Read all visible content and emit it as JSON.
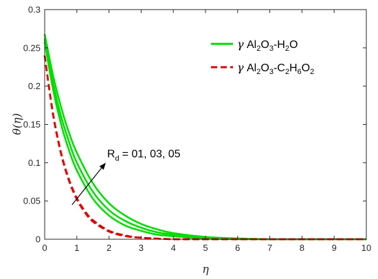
{
  "chart_data": {
    "type": "line",
    "xlabel": "η",
    "ylabel": "θ(η)",
    "xlim": [
      0,
      10
    ],
    "ylim": [
      0,
      0.3
    ],
    "x_ticks": [
      0,
      1,
      2,
      3,
      4,
      5,
      6,
      7,
      8,
      9,
      10
    ],
    "y_ticks": [
      0,
      0.05,
      0.1,
      0.15,
      0.2,
      0.25,
      0.3
    ],
    "x_tick_labels": [
      "0",
      "1",
      "2",
      "3",
      "4",
      "5",
      "6",
      "7",
      "8",
      "9",
      "10"
    ],
    "y_tick_labels": [
      "0",
      "0.05",
      "0.1",
      "0.15",
      "0.2",
      "0.25",
      "0.3"
    ],
    "grid": false,
    "legend_position": "top-right",
    "legend": [
      {
        "label": "γ Al2O3-H2O",
        "color": "#00dd00",
        "style": "solid"
      },
      {
        "label": "γ Al2O3-C2H6O2",
        "color": "#e00000",
        "style": "dashed"
      }
    ],
    "series": [
      {
        "group": "Al2O3-H2O",
        "color": "#00dd00",
        "style": "solid",
        "x": [
          0,
          0.25,
          0.5,
          0.75,
          1,
          1.5,
          2,
          2.5,
          3,
          3.5,
          4,
          5,
          6,
          7,
          8,
          9,
          10
        ],
        "y": [
          0.258,
          0.198,
          0.152,
          0.117,
          0.09,
          0.053,
          0.031,
          0.018,
          0.011,
          0.006,
          0.004,
          0.001,
          0.0,
          0.0,
          0.0,
          0.0,
          0.0
        ]
      },
      {
        "group": "Al2O3-H2O",
        "color": "#00dd00",
        "style": "solid",
        "x": [
          0,
          0.25,
          0.5,
          0.75,
          1,
          1.5,
          2,
          2.5,
          3,
          3.5,
          4,
          5,
          6,
          7,
          8,
          9,
          10
        ],
        "y": [
          0.262,
          0.206,
          0.162,
          0.128,
          0.1,
          0.062,
          0.038,
          0.024,
          0.015,
          0.009,
          0.006,
          0.002,
          0.001,
          0.0,
          0.0,
          0.0,
          0.0
        ]
      },
      {
        "group": "Al2O3-H2O",
        "color": "#00dd00",
        "style": "solid",
        "x": [
          0,
          0.25,
          0.5,
          0.75,
          1,
          1.5,
          2,
          2.5,
          3,
          3.5,
          4,
          5,
          6,
          7,
          8,
          9,
          10
        ],
        "y": [
          0.268,
          0.216,
          0.174,
          0.14,
          0.113,
          0.073,
          0.047,
          0.031,
          0.02,
          0.013,
          0.008,
          0.003,
          0.001,
          0.0,
          0.0,
          0.0,
          0.0
        ]
      },
      {
        "group": "Al2O3-C2H6O2",
        "color": "#e00000",
        "style": "dashed",
        "x": [
          0,
          0.25,
          0.5,
          0.75,
          1,
          1.25,
          1.5,
          2,
          2.5,
          3,
          4,
          5,
          6,
          7,
          8,
          9,
          10
        ],
        "y": [
          0.24,
          0.165,
          0.113,
          0.077,
          0.052,
          0.035,
          0.023,
          0.01,
          0.004,
          0.002,
          0.0,
          0.0,
          0.0,
          0.0,
          0.0,
          0.0,
          0.0
        ]
      },
      {
        "group": "Al2O3-C2H6O2",
        "color": "#e00000",
        "style": "dashed",
        "x": [
          0,
          0.25,
          0.5,
          0.75,
          1,
          1.25,
          1.5,
          2,
          2.5,
          3,
          4,
          5,
          6,
          7,
          8,
          9,
          10
        ],
        "y": [
          0.24,
          0.166,
          0.114,
          0.078,
          0.053,
          0.036,
          0.024,
          0.011,
          0.005,
          0.002,
          0.0,
          0.0,
          0.0,
          0.0,
          0.0,
          0.0,
          0.0
        ]
      },
      {
        "group": "Al2O3-C2H6O2",
        "color": "#e00000",
        "style": "dashed",
        "x": [
          0,
          0.25,
          0.5,
          0.75,
          1,
          1.25,
          1.5,
          2,
          2.5,
          3,
          4,
          5,
          6,
          7,
          8,
          9,
          10
        ],
        "y": [
          0.24,
          0.167,
          0.115,
          0.079,
          0.054,
          0.037,
          0.025,
          0.011,
          0.005,
          0.002,
          0.0,
          0.0,
          0.0,
          0.0,
          0.0,
          0.0,
          0.0
        ]
      }
    ],
    "annotation": {
      "text": "= 01, 03, 05",
      "symbol": "R",
      "subscript": "d",
      "arrow_from": [
        0.85,
        0.045
      ],
      "arrow_to": [
        1.9,
        0.1
      ]
    }
  }
}
